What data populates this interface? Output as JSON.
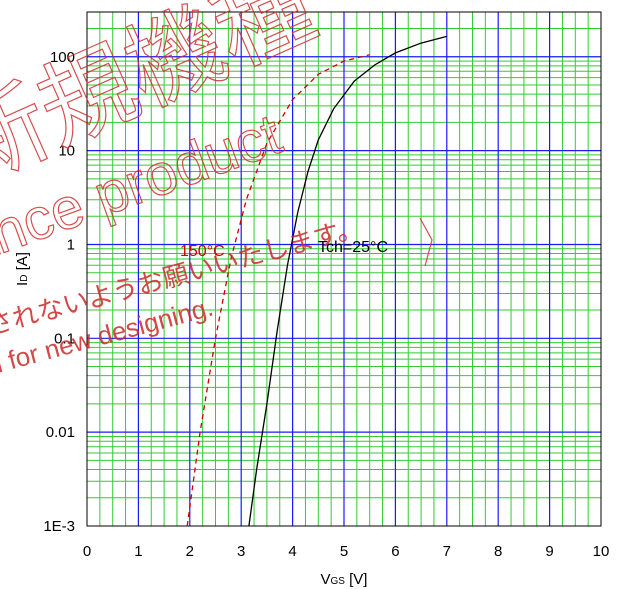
{
  "chart_data": {
    "type": "line",
    "xlabel_main": "V",
    "xlabel_sub": "GS",
    "xlabel_unit": " [V]",
    "ylabel_main": "I",
    "ylabel_sub": "D",
    "ylabel_unit": " [A]",
    "xlim": [
      0,
      10
    ],
    "ylim": [
      0.001,
      300
    ],
    "y_scale": "log",
    "grid": true,
    "x_ticks": [
      "0",
      "1",
      "2",
      "3",
      "4",
      "5",
      "6",
      "7",
      "8",
      "9",
      "10"
    ],
    "y_ticks": [
      {
        "value": 0.001,
        "label": "1E-3"
      },
      {
        "value": 0.01,
        "label": "0.01"
      },
      {
        "value": 0.1,
        "label": "0.1"
      },
      {
        "value": 1,
        "label": "1"
      },
      {
        "value": 10,
        "label": "10"
      },
      {
        "value": 100,
        "label": "100"
      }
    ],
    "series": [
      {
        "name": "Tch=25°C",
        "color": "#000000",
        "dashed": false,
        "points": [
          [
            3.15,
            0.001
          ],
          [
            3.3,
            0.004
          ],
          [
            3.5,
            0.02
          ],
          [
            3.7,
            0.12
          ],
          [
            3.9,
            0.6
          ],
          [
            4.1,
            2.2
          ],
          [
            4.3,
            6
          ],
          [
            4.5,
            13
          ],
          [
            4.8,
            28
          ],
          [
            5.2,
            55
          ],
          [
            5.6,
            82
          ],
          [
            6.0,
            110
          ],
          [
            6.5,
            140
          ],
          [
            7.0,
            165
          ]
        ]
      },
      {
        "name": "150°C",
        "color": "#cc0000",
        "dashed": true,
        "points": [
          [
            1.95,
            0.001
          ],
          [
            2.2,
            0.01
          ],
          [
            2.5,
            0.1
          ],
          [
            2.8,
            0.7
          ],
          [
            3.1,
            3
          ],
          [
            3.5,
            12
          ],
          [
            4.0,
            35
          ],
          [
            4.5,
            65
          ],
          [
            5.0,
            90
          ],
          [
            5.5,
            105
          ]
        ]
      }
    ],
    "annotations": [
      {
        "text": "150°C",
        "color": "#cc0000"
      },
      {
        "text": "Tch=25°C",
        "color": "#000000"
      }
    ]
  },
  "watermark": {
    "kanji": "新規機種",
    "latin": "ance product",
    "jp_line": "されないようお願いいたします。",
    "en_line": "n for new designing."
  }
}
